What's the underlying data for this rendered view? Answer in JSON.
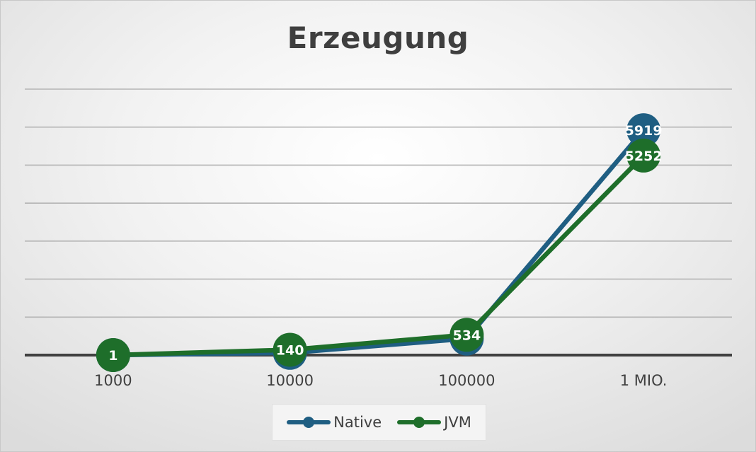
{
  "chart_data": {
    "type": "line",
    "title": "Erzeugung",
    "xlabel": "",
    "ylabel": "",
    "categories": [
      "1000",
      "10000",
      "100000",
      "1 MIO."
    ],
    "series": [
      {
        "name": "Native",
        "values": [
          1,
          60,
          433,
          5919
        ],
        "color": "#1f5e82"
      },
      {
        "name": "JVM",
        "values": [
          1,
          140,
          534,
          5252
        ],
        "color": "#1e6e2a"
      }
    ],
    "ylim": [
      0,
      7000
    ],
    "y_gridline_step": 1000,
    "y_tick_labels_shown": false,
    "data_labels": true,
    "legend": "bottom",
    "grid": true
  }
}
